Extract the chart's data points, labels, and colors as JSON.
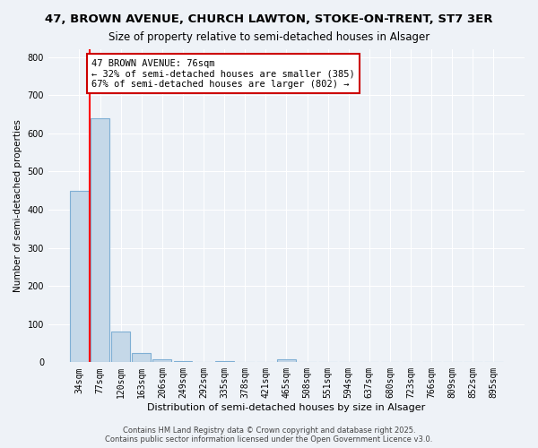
{
  "title_line1": "47, BROWN AVENUE, CHURCH LAWTON, STOKE-ON-TRENT, ST7 3ER",
  "title_line2": "Size of property relative to semi-detached houses in Alsager",
  "xlabel": "Distribution of semi-detached houses by size in Alsager",
  "ylabel": "Number of semi-detached properties",
  "annotation_text": "47 BROWN AVENUE: 76sqm\n← 32% of semi-detached houses are smaller (385)\n67% of semi-detached houses are larger (802) →",
  "bin_labels": [
    "34sqm",
    "77sqm",
    "120sqm",
    "163sqm",
    "206sqm",
    "249sqm",
    "292sqm",
    "335sqm",
    "378sqm",
    "421sqm",
    "465sqm",
    "508sqm",
    "551sqm",
    "594sqm",
    "637sqm",
    "680sqm",
    "723sqm",
    "766sqm",
    "809sqm",
    "852sqm",
    "895sqm"
  ],
  "bar_values": [
    450,
    640,
    80,
    25,
    8,
    2,
    0,
    2,
    0,
    0,
    8,
    0,
    0,
    0,
    0,
    0,
    0,
    0,
    0,
    0,
    0
  ],
  "bar_color": "#c5d8e8",
  "bar_edge_color": "#7fafd4",
  "red_line_x": 0.5,
  "ylim": [
    0,
    820
  ],
  "yticks": [
    0,
    100,
    200,
    300,
    400,
    500,
    600,
    700,
    800
  ],
  "footer_line1": "Contains HM Land Registry data © Crown copyright and database right 2025.",
  "footer_line2": "Contains public sector information licensed under the Open Government Licence v3.0.",
  "bg_color": "#eef2f7",
  "grid_color": "#ffffff",
  "annotation_box_color": "#ffffff",
  "annotation_box_edge": "#cc0000"
}
